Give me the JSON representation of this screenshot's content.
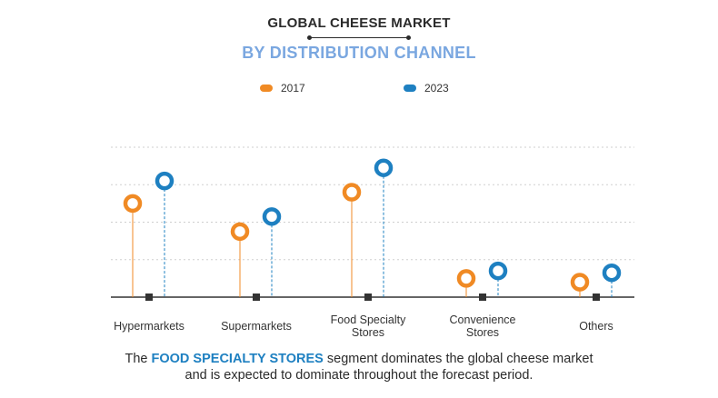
{
  "header": {
    "title": "GLOBAL CHEESE MARKET",
    "subtitle": "BY DISTRIBUTION CHANNEL"
  },
  "colors": {
    "series_2017": "#f08a24",
    "series_2023": "#1e80c1",
    "grid": "#cfcfcf",
    "axis": "#333333"
  },
  "chart_data": {
    "type": "scatter",
    "style": "lollipop",
    "categories": [
      [
        "Hypermarkets"
      ],
      [
        "Supermarkets"
      ],
      [
        "Food Specialty",
        "Stores"
      ],
      [
        "Convenience",
        "Stores"
      ],
      [
        "Others"
      ]
    ],
    "series": [
      {
        "name": "2017",
        "values": [
          2.5,
          1.75,
          2.8,
          0.5,
          0.4
        ]
      },
      {
        "name": "2023",
        "values": [
          3.1,
          2.15,
          3.45,
          0.7,
          0.65
        ]
      }
    ],
    "ylim": [
      0,
      4
    ],
    "grid": true,
    "legend": "top-center",
    "xlabel": "",
    "ylabel": ""
  },
  "footer": {
    "prefix": "The ",
    "highlight": "FOOD SPECIALTY STORES",
    "line1_rest": " segment dominates the global cheese market",
    "line2": "and is expected to dominate throughout the forecast period."
  }
}
